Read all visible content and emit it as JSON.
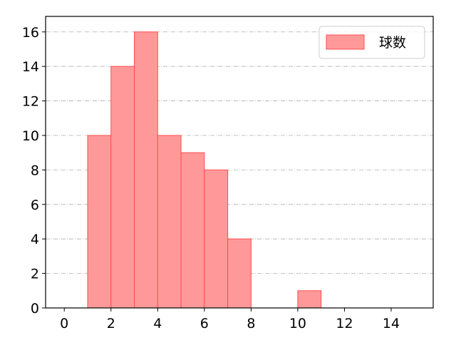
{
  "chart_data": {
    "type": "bar",
    "histogram": true,
    "bins": [
      [
        1,
        2
      ],
      [
        2,
        3
      ],
      [
        3,
        4
      ],
      [
        4,
        5
      ],
      [
        5,
        6
      ],
      [
        6,
        7
      ],
      [
        7,
        8
      ],
      [
        10,
        11
      ]
    ],
    "series": [
      {
        "name": "球数",
        "values": [
          10,
          14,
          16,
          10,
          9,
          8,
          4,
          1
        ]
      }
    ],
    "xlim": [
      -0.8,
      15.8
    ],
    "ylim": [
      0,
      16.9
    ],
    "xticks": [
      0,
      2,
      4,
      6,
      8,
      10,
      12,
      14
    ],
    "yticks": [
      0,
      2,
      4,
      6,
      8,
      10,
      12,
      14,
      16
    ],
    "grid": "y-dashdot",
    "legend": "top-right",
    "colors": {
      "fill": "#ff9999",
      "edge": "#ff4d4d",
      "grid": "#b0b0b0"
    }
  }
}
